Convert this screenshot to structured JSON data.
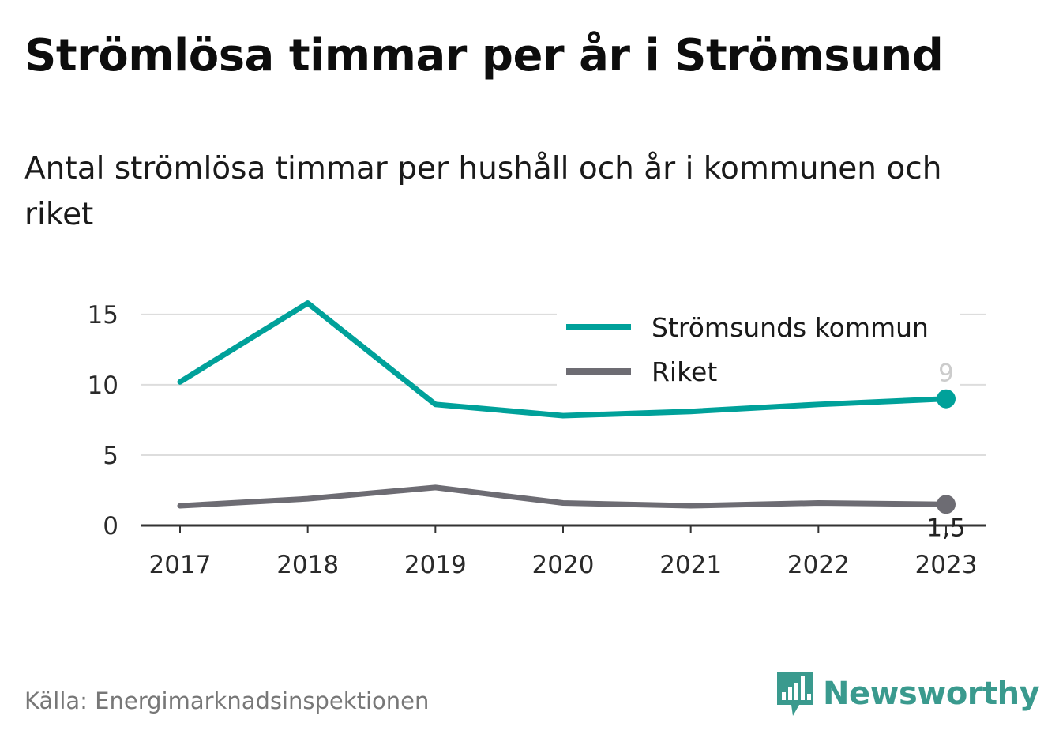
{
  "header": {
    "title": "Strömlösa timmar per år i Strömsund",
    "subtitle": "Antal strömlösa timmar per hushåll och år i kommunen och riket"
  },
  "footer": {
    "source": "Källa: Energimarknadsinspektionen",
    "brand": "Newsworthy",
    "brand_icon": "bar-chart-speech-bubble-icon"
  },
  "colors": {
    "kommun": "#00a19a",
    "riket": "#6d6c73",
    "grid": "#dddddd",
    "axis": "#333333",
    "brand": "#3a9a8e"
  },
  "chart_data": {
    "type": "line",
    "x": [
      "2017",
      "2018",
      "2019",
      "2020",
      "2021",
      "2022",
      "2023"
    ],
    "series": [
      {
        "name": "Strömsunds kommun",
        "values": [
          10.2,
          15.8,
          8.6,
          7.8,
          8.1,
          8.6,
          9
        ],
        "end_label": "9"
      },
      {
        "name": "Riket",
        "values": [
          1.4,
          1.9,
          2.7,
          1.6,
          1.4,
          1.6,
          1.5
        ],
        "end_label": "1,5"
      }
    ],
    "yticks": [
      "0",
      "5",
      "10",
      "15"
    ],
    "ylim": [
      0,
      16
    ],
    "grid": true,
    "legend": "top-right"
  }
}
